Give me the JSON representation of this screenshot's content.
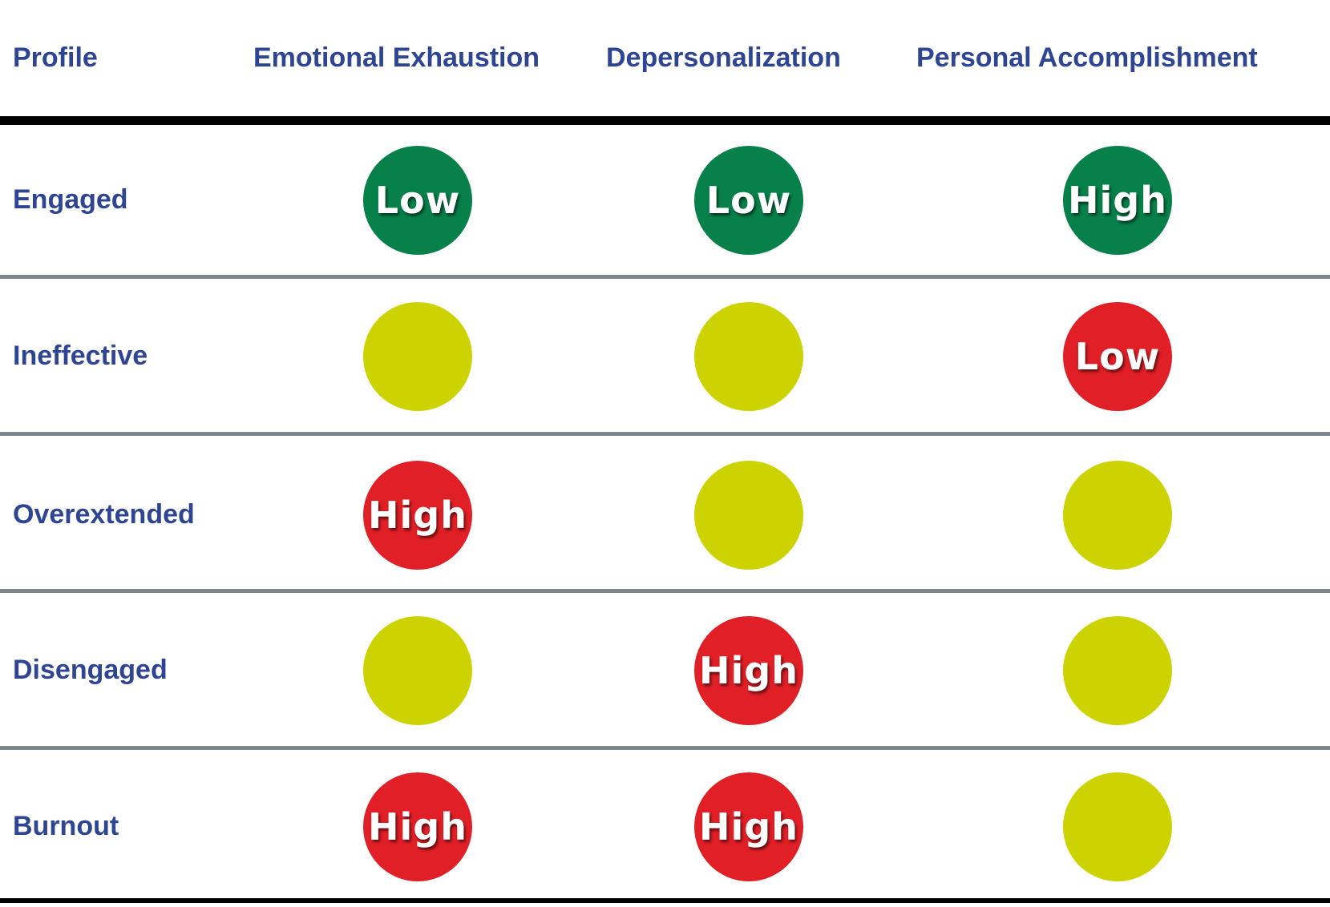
{
  "headers": {
    "profile": "Profile",
    "emotional_exhaustion": "Emotional Exhaustion",
    "depersonalization": "Depersonalization",
    "personal_accomplishment": "Personal Accomplishment"
  },
  "colors": {
    "header_text": "#2E4593",
    "green": "#08804A",
    "yellow": "#CDD300",
    "red": "#E01F26"
  },
  "rows": [
    {
      "label": "Engaged",
      "cells": [
        {
          "level": "green",
          "text": "Low"
        },
        {
          "level": "green",
          "text": "Low"
        },
        {
          "level": "green",
          "text": "High"
        }
      ]
    },
    {
      "label": "Ineffective",
      "cells": [
        {
          "level": "yellow",
          "text": ""
        },
        {
          "level": "yellow",
          "text": ""
        },
        {
          "level": "red",
          "text": "Low"
        }
      ]
    },
    {
      "label": "Overextended",
      "cells": [
        {
          "level": "red",
          "text": "High"
        },
        {
          "level": "yellow",
          "text": ""
        },
        {
          "level": "yellow",
          "text": ""
        }
      ]
    },
    {
      "label": "Disengaged",
      "cells": [
        {
          "level": "yellow",
          "text": ""
        },
        {
          "level": "red",
          "text": "High"
        },
        {
          "level": "yellow",
          "text": ""
        }
      ]
    },
    {
      "label": "Burnout",
      "cells": [
        {
          "level": "red",
          "text": "High"
        },
        {
          "level": "red",
          "text": "High"
        },
        {
          "level": "yellow",
          "text": ""
        }
      ]
    }
  ]
}
